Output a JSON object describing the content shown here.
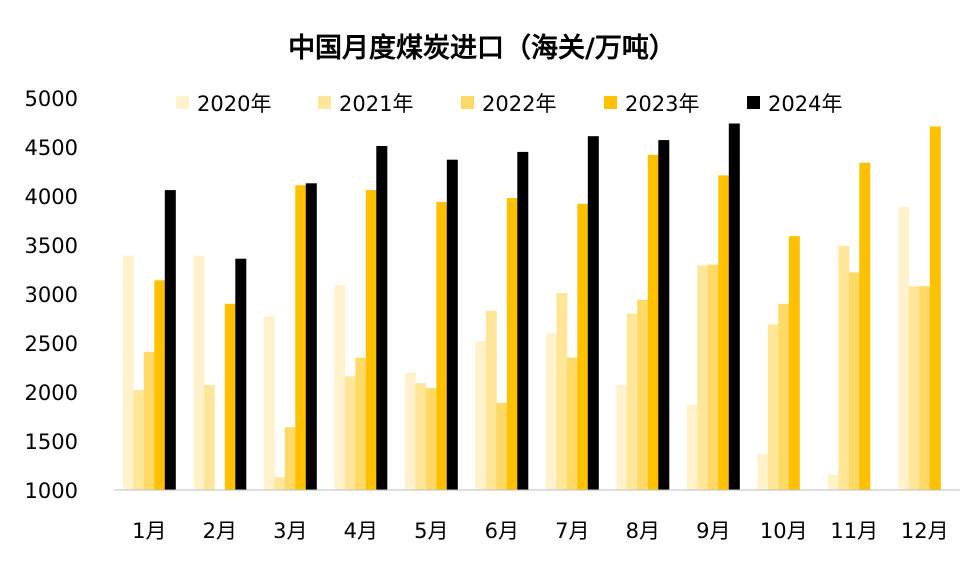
{
  "chart_data": {
    "type": "bar",
    "title": "中国月度煤炭进口（海关/万吨）",
    "xlabel": "",
    "ylabel": "",
    "ylim": [
      1000,
      5000
    ],
    "yticks": [
      1000,
      1500,
      2000,
      2500,
      3000,
      3500,
      4000,
      4500,
      5000
    ],
    "grid": false,
    "legend_position": "top",
    "categories": [
      "1月",
      "2月",
      "3月",
      "4月",
      "5月",
      "6月",
      "7月",
      "8月",
      "9月",
      "10月",
      "11月",
      "12月"
    ],
    "series": [
      {
        "name": "2020年",
        "color": "#fff2cc",
        "values": [
          3390,
          3390,
          2770,
          3090,
          2200,
          2520,
          2600,
          2070,
          1870,
          1370,
          1160,
          3890
        ]
      },
      {
        "name": "2021年",
        "color": "#ffe699",
        "values": [
          2020,
          2070,
          1130,
          2160,
          2090,
          2830,
          3010,
          2800,
          3290,
          2690,
          3490,
          3080
        ]
      },
      {
        "name": "2022年",
        "color": "#ffd966",
        "values": [
          2410,
          null,
          1640,
          2350,
          2040,
          1890,
          2350,
          2940,
          3300,
          2900,
          3220,
          3080
        ]
      },
      {
        "name": "2023年",
        "color": "#ffc000",
        "values": [
          3140,
          2900,
          4110,
          4060,
          3940,
          3980,
          3920,
          4420,
          4210,
          3590,
          4340,
          4710
        ]
      },
      {
        "name": "2024年",
        "color": "#000000",
        "values": [
          4060,
          3360,
          4130,
          4510,
          4370,
          4450,
          4610,
          4570,
          4740,
          null,
          null,
          null
        ]
      }
    ]
  }
}
